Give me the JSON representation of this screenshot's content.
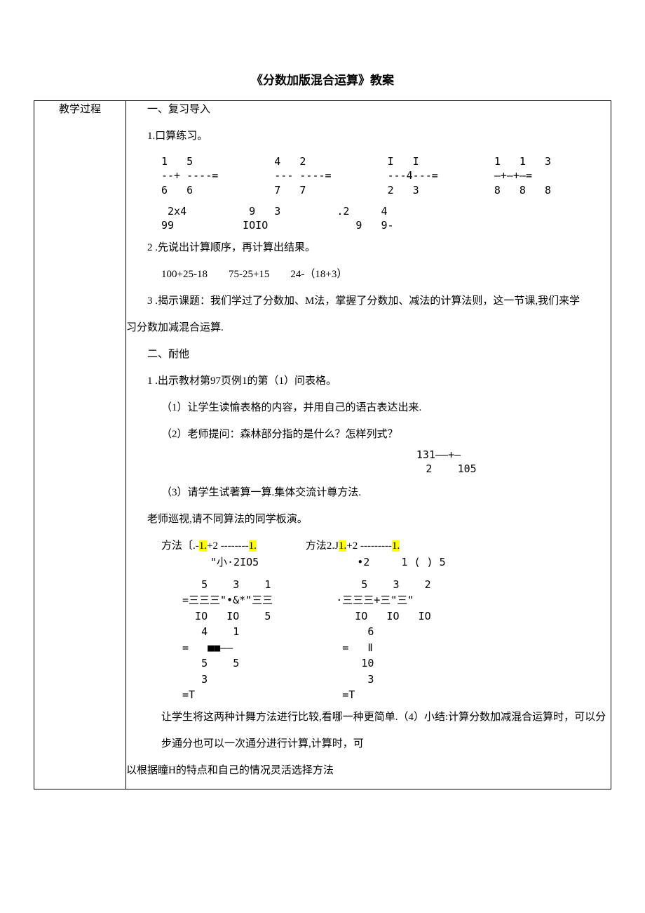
{
  "doc": {
    "title": "《分数加版混合运算》教案",
    "left_label": "教学过程",
    "sec1_head": "一、复习导入",
    "sec1_l1": "1.口算练习。",
    "fr_row1": {
      "c1": "1   5\n--+ ----=\n6   6",
      "c2": "4   2\n--- ----=\n7   7",
      "c3": "I   I\n---4---=\n2   3",
      "c4": "1   1   3\n—+—+—=\n8   8   8"
    },
    "fr_row2": {
      "c1": " 2x4\n99",
      "c2": " 9   3\nIOIO",
      "c3": ".2     4\n   9   9-"
    },
    "sec1_l2": "2 .先说出计算顺序，再计算出结果。",
    "sec1_expr": "100+25-18        75-25+15        24-（18+3）",
    "sec1_l3": "3 .揭示课题：我们学过了分数加、M法，掌握了分数加、减法的计算法则，这一节课,我们来学",
    "sec1_l3b": "习分数加减混合运算.",
    "sec2_head": "二、耐他",
    "sec2_l1": "1 .出示教材第97页例1的第（1）问表格。",
    "sec2_l2": "（1）让学生读愉表格的内容，并用自己的语古表达出来.",
    "sec2_l3": "（2）老师提问：森林部分指的是什么？怎样列式？",
    "sec2_frac": "131——+—\n    2    105",
    "sec2_l4": "（3）请学生试著算一算.集体交流计尊方法.",
    "sec2_l5": "老师巡视,请不同算法的同学板演。",
    "meth1_a": "方法〔.-",
    "meth_hl1": "1.",
    "meth1_b": "+2 --------",
    "meth_hl2": "1.",
    "meth2_a": "方法2.J",
    "meth_hl3": "1.",
    "meth2_b": "+2 ---------",
    "meth_hl4": "1.",
    "msub1": "\"小·2IO5",
    "msub2": "•2     1 ( ) 5",
    "mb1": "   5    3    1\n=三三三\"•&*\"三三\n  IO   IO    5\n   4    1\n=   ■■——\n   5    5\n   3\n=T",
    "mb2": "    5    3    2\n·三三三+三\"三\"\n   IO   IO   IO\n     6\n =   Ⅱ\n    10\n     3\n =T",
    "sec2_l6a": "让学生将这两种计舞方法进行比较,看哪一种更简单.（4）小结:计算分数加减混合运算时，可以分",
    "sec2_l6b": "步通分也可以一次通分进行计算,计算时，可",
    "sec2_cut": "以根据瞳H的特点和自己的情况灵活选择方法"
  },
  "style": {
    "page_bg": "#ffffff",
    "text_color": "#000000",
    "highlight": "#ffff00",
    "border": "#000000",
    "base_font_pt": 11,
    "title_font_pt": 13
  }
}
